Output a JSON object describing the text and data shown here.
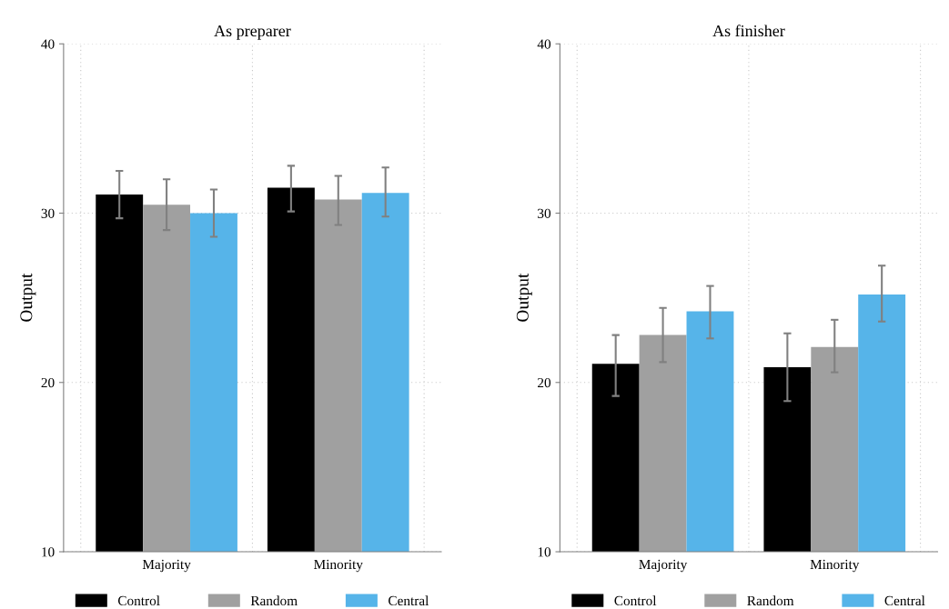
{
  "chart_data": [
    {
      "type": "bar",
      "title": "As preparer",
      "ylabel": "Output",
      "categories": [
        "Majority",
        "Minority"
      ],
      "ylim": [
        10,
        40
      ],
      "yticks": [
        10,
        20,
        30,
        40
      ],
      "grid": true,
      "legend": "bottom",
      "series": [
        {
          "name": "Control",
          "color": "#000000",
          "values": [
            31.1,
            31.5
          ],
          "errors": [
            [
              29.7,
              32.5
            ],
            [
              30.1,
              32.8
            ]
          ]
        },
        {
          "name": "Random",
          "color": "#a0a0a0",
          "values": [
            30.5,
            30.8
          ],
          "errors": [
            [
              29.0,
              32.0
            ],
            [
              29.3,
              32.2
            ]
          ]
        },
        {
          "name": "Central",
          "color": "#56b4e9",
          "values": [
            30.0,
            31.2
          ],
          "errors": [
            [
              28.6,
              31.4
            ],
            [
              29.8,
              32.7
            ]
          ]
        }
      ]
    },
    {
      "type": "bar",
      "title": "As finisher",
      "ylabel": "Output",
      "categories": [
        "Majority",
        "Minority"
      ],
      "ylim": [
        10,
        40
      ],
      "yticks": [
        10,
        20,
        30,
        40
      ],
      "grid": true,
      "legend": "bottom",
      "series": [
        {
          "name": "Control",
          "color": "#000000",
          "values": [
            21.1,
            20.9
          ],
          "errors": [
            [
              19.2,
              22.8
            ],
            [
              18.9,
              22.9
            ]
          ]
        },
        {
          "name": "Random",
          "color": "#a0a0a0",
          "values": [
            22.8,
            22.1
          ],
          "errors": [
            [
              21.2,
              24.4
            ],
            [
              20.6,
              23.7
            ]
          ]
        },
        {
          "name": "Central",
          "color": "#56b4e9",
          "values": [
            24.2,
            25.2
          ],
          "errors": [
            [
              22.6,
              25.7
            ],
            [
              23.6,
              26.9
            ]
          ]
        }
      ]
    }
  ]
}
